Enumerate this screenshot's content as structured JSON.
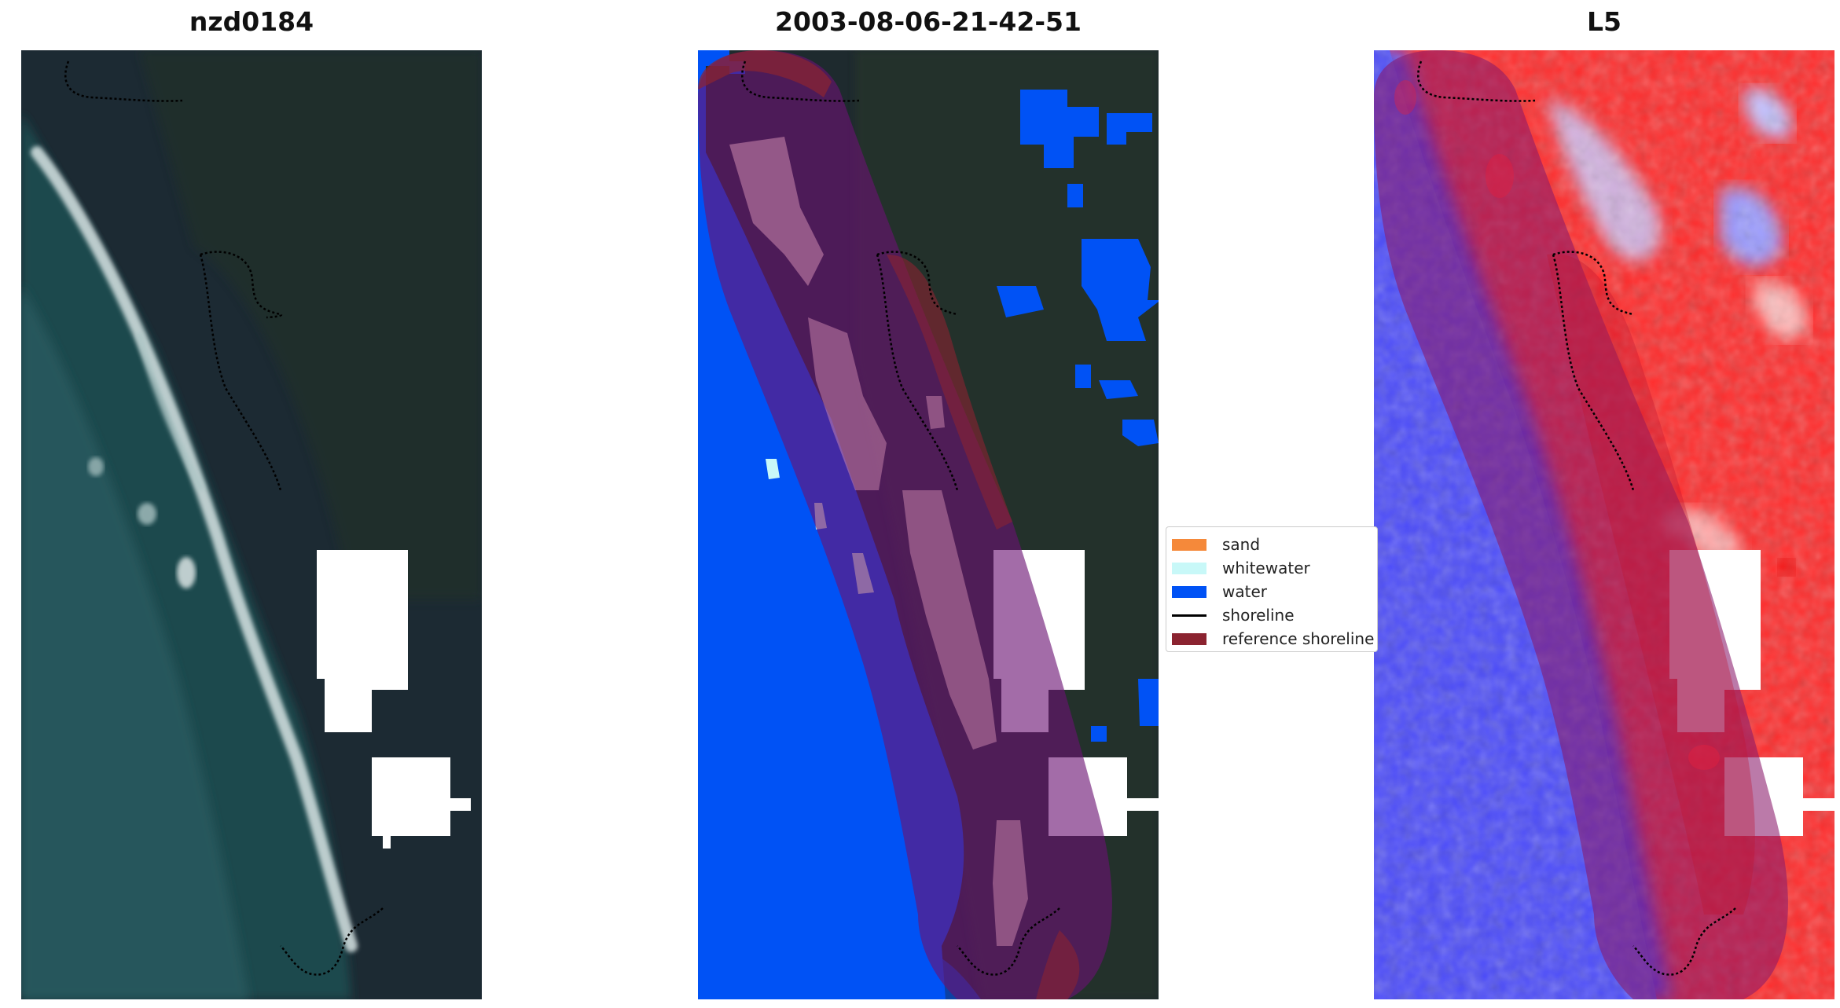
{
  "panels": {
    "left": {
      "title": "nzd0184"
    },
    "middle": {
      "title": "2003-08-06-21-42-51"
    },
    "right": {
      "title": "L5"
    }
  },
  "legend": {
    "items": [
      {
        "label": "sand",
        "color": "#f5893a",
        "kind": "patch"
      },
      {
        "label": "whitewater",
        "color": "#c8f8f8",
        "kind": "patch"
      },
      {
        "label": "water",
        "color": "#0052f5",
        "kind": "patch"
      },
      {
        "label": "shoreline",
        "color": "#000000",
        "kind": "line"
      },
      {
        "label": "reference shoreline",
        "color": "#8b2330",
        "kind": "patch"
      }
    ]
  },
  "colors": {
    "ocean": "#1f4a4e",
    "land": "#1c2a33",
    "cloud_mask": "#ffffff",
    "water_class": "#0052f5",
    "reference_overlay": "#7a1a5a",
    "index_low": "#3b3bff",
    "index_high": "#ff2a2a"
  }
}
